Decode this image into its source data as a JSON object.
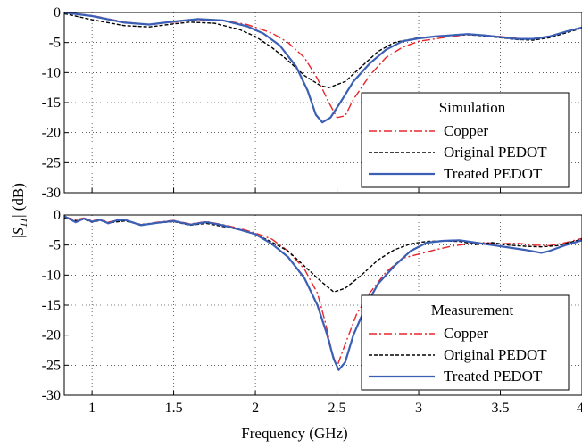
{
  "chart_data": [
    {
      "type": "line",
      "title": "Simulation",
      "xlim": [
        0.83,
        4.0
      ],
      "ylim": [
        -30,
        0
      ],
      "xticks": [
        1,
        1.5,
        2,
        2.5,
        3,
        3.5,
        4
      ],
      "yticks": [
        0,
        -5,
        -10,
        -15,
        -20,
        -25,
        -30
      ],
      "xtick_labels": [
        "1",
        "1.5",
        "2",
        "2.5",
        "3",
        "3.5",
        "4"
      ],
      "ytick_labels": [
        "0",
        "-5",
        "-10",
        "-15",
        "-20",
        "-25",
        "-30"
      ],
      "grid": true,
      "legend_position": "lower-right",
      "series": [
        {
          "name": "Copper",
          "color": "#e8252b",
          "dash": "dash-dot",
          "points": [
            [
              0.83,
              0
            ],
            [
              1.0,
              -0.5
            ],
            [
              1.2,
              -1.6
            ],
            [
              1.35,
              -2.0
            ],
            [
              1.5,
              -1.6
            ],
            [
              1.65,
              -1.2
            ],
            [
              1.8,
              -1.3
            ],
            [
              1.95,
              -2.0
            ],
            [
              2.1,
              -3.4
            ],
            [
              2.2,
              -5.0
            ],
            [
              2.3,
              -7.5
            ],
            [
              2.38,
              -11.0
            ],
            [
              2.45,
              -15.0
            ],
            [
              2.5,
              -17.5
            ],
            [
              2.55,
              -17.2
            ],
            [
              2.6,
              -14.5
            ],
            [
              2.7,
              -10.5
            ],
            [
              2.8,
              -7.5
            ],
            [
              2.9,
              -5.8
            ],
            [
              3.0,
              -4.8
            ],
            [
              3.1,
              -4.4
            ],
            [
              3.2,
              -4.0
            ],
            [
              3.3,
              -3.7
            ],
            [
              3.4,
              -3.8
            ],
            [
              3.5,
              -4.0
            ],
            [
              3.6,
              -4.3
            ],
            [
              3.7,
              -4.4
            ],
            [
              3.8,
              -4.0
            ],
            [
              3.9,
              -3.2
            ],
            [
              4.0,
              -2.5
            ]
          ]
        },
        {
          "name": "Original PEDOT",
          "color": "#000000",
          "dash": "dashed",
          "points": [
            [
              0.83,
              -0.2
            ],
            [
              1.0,
              -1.2
            ],
            [
              1.2,
              -2.2
            ],
            [
              1.35,
              -2.4
            ],
            [
              1.5,
              -1.9
            ],
            [
              1.6,
              -1.6
            ],
            [
              1.75,
              -1.8
            ],
            [
              1.9,
              -2.8
            ],
            [
              2.0,
              -4.0
            ],
            [
              2.1,
              -5.8
            ],
            [
              2.2,
              -8.0
            ],
            [
              2.3,
              -10.5
            ],
            [
              2.4,
              -12.2
            ],
            [
              2.45,
              -12.5
            ],
            [
              2.55,
              -11.5
            ],
            [
              2.65,
              -9.0
            ],
            [
              2.75,
              -6.5
            ],
            [
              2.85,
              -5.0
            ],
            [
              3.0,
              -4.2
            ],
            [
              3.2,
              -3.8
            ],
            [
              3.3,
              -3.7
            ],
            [
              3.4,
              -3.9
            ],
            [
              3.5,
              -4.2
            ],
            [
              3.6,
              -4.5
            ],
            [
              3.7,
              -4.6
            ],
            [
              3.8,
              -4.2
            ],
            [
              3.9,
              -3.4
            ],
            [
              4.0,
              -2.6
            ]
          ]
        },
        {
          "name": "Treated PEDOT",
          "color": "#3b5fb5",
          "dash": "solid",
          "points": [
            [
              0.83,
              0
            ],
            [
              1.0,
              -0.6
            ],
            [
              1.2,
              -1.7
            ],
            [
              1.35,
              -2.0
            ],
            [
              1.5,
              -1.5
            ],
            [
              1.65,
              -1.1
            ],
            [
              1.8,
              -1.3
            ],
            [
              1.95,
              -2.3
            ],
            [
              2.05,
              -3.5
            ],
            [
              2.15,
              -5.5
            ],
            [
              2.25,
              -9.0
            ],
            [
              2.32,
              -13.0
            ],
            [
              2.37,
              -17.0
            ],
            [
              2.41,
              -18.3
            ],
            [
              2.46,
              -17.5
            ],
            [
              2.52,
              -15.0
            ],
            [
              2.6,
              -11.5
            ],
            [
              2.7,
              -8.5
            ],
            [
              2.8,
              -6.2
            ],
            [
              2.9,
              -4.8
            ],
            [
              3.0,
              -4.3
            ],
            [
              3.1,
              -4.0
            ],
            [
              3.3,
              -3.6
            ],
            [
              3.4,
              -3.8
            ],
            [
              3.5,
              -4.1
            ],
            [
              3.6,
              -4.4
            ],
            [
              3.7,
              -4.4
            ],
            [
              3.8,
              -4.0
            ],
            [
              3.9,
              -3.2
            ],
            [
              4.0,
              -2.5
            ]
          ]
        }
      ]
    },
    {
      "type": "line",
      "title": "Measurement",
      "xlim": [
        0.83,
        4.0
      ],
      "ylim": [
        -30,
        0
      ],
      "xticks": [
        1,
        1.5,
        2,
        2.5,
        3,
        3.5,
        4
      ],
      "yticks": [
        0,
        -5,
        -10,
        -15,
        -20,
        -25,
        -30
      ],
      "xtick_labels": [
        "1",
        "1.5",
        "2",
        "2.5",
        "3",
        "3.5",
        "4"
      ],
      "ytick_labels": [
        "0",
        "-5",
        "-10",
        "-15",
        "-20",
        "-25",
        "-30"
      ],
      "grid": true,
      "legend_position": "lower-right",
      "series": [
        {
          "name": "Copper",
          "color": "#e8252b",
          "dash": "dash-dot",
          "points": [
            [
              0.83,
              -0.3
            ],
            [
              0.9,
              -0.8
            ],
            [
              0.95,
              -0.5
            ],
            [
              1.0,
              -1.0
            ],
            [
              1.05,
              -0.7
            ],
            [
              1.1,
              -1.2
            ],
            [
              1.15,
              -0.9
            ],
            [
              1.2,
              -0.8
            ],
            [
              1.3,
              -1.6
            ],
            [
              1.4,
              -1.2
            ],
            [
              1.5,
              -0.9
            ],
            [
              1.6,
              -1.5
            ],
            [
              1.7,
              -1.1
            ],
            [
              1.8,
              -1.6
            ],
            [
              1.9,
              -2.2
            ],
            [
              2.0,
              -3.0
            ],
            [
              2.1,
              -4.0
            ],
            [
              2.2,
              -6.0
            ],
            [
              2.3,
              -9.0
            ],
            [
              2.38,
              -13.0
            ],
            [
              2.43,
              -18.0
            ],
            [
              2.47,
              -23.0
            ],
            [
              2.5,
              -25.2
            ],
            [
              2.55,
              -21.5
            ],
            [
              2.62,
              -16.5
            ],
            [
              2.7,
              -13.0
            ],
            [
              2.8,
              -9.5
            ],
            [
              2.9,
              -7.2
            ],
            [
              3.0,
              -6.5
            ],
            [
              3.1,
              -5.8
            ],
            [
              3.2,
              -5.2
            ],
            [
              3.3,
              -4.8
            ],
            [
              3.4,
              -4.6
            ],
            [
              3.5,
              -4.8
            ],
            [
              3.6,
              -4.7
            ],
            [
              3.7,
              -5.0
            ],
            [
              3.8,
              -5.1
            ],
            [
              3.9,
              -4.6
            ],
            [
              4.0,
              -3.9
            ]
          ]
        },
        {
          "name": "Original PEDOT",
          "color": "#000000",
          "dash": "dashed",
          "points": [
            [
              0.83,
              -0.5
            ],
            [
              0.9,
              -1.0
            ],
            [
              0.95,
              -0.7
            ],
            [
              1.0,
              -1.2
            ],
            [
              1.05,
              -0.9
            ],
            [
              1.1,
              -1.3
            ],
            [
              1.2,
              -1.0
            ],
            [
              1.3,
              -1.6
            ],
            [
              1.4,
              -1.3
            ],
            [
              1.5,
              -1.1
            ],
            [
              1.6,
              -1.7
            ],
            [
              1.7,
              -1.4
            ],
            [
              1.8,
              -1.9
            ],
            [
              1.9,
              -2.4
            ],
            [
              2.0,
              -3.2
            ],
            [
              2.1,
              -4.5
            ],
            [
              2.2,
              -6.0
            ],
            [
              2.3,
              -8.5
            ],
            [
              2.4,
              -11.0
            ],
            [
              2.48,
              -12.8
            ],
            [
              2.55,
              -12.2
            ],
            [
              2.65,
              -10.0
            ],
            [
              2.75,
              -7.5
            ],
            [
              2.85,
              -5.8
            ],
            [
              2.95,
              -4.8
            ],
            [
              3.05,
              -4.4
            ],
            [
              3.15,
              -4.3
            ],
            [
              3.25,
              -4.4
            ],
            [
              3.35,
              -4.9
            ],
            [
              3.45,
              -4.6
            ],
            [
              3.55,
              -5.0
            ],
            [
              3.65,
              -5.2
            ],
            [
              3.75,
              -5.3
            ],
            [
              3.85,
              -5.1
            ],
            [
              3.95,
              -4.4
            ],
            [
              4.0,
              -4.0
            ]
          ]
        },
        {
          "name": "Treated PEDOT",
          "color": "#3b5fb5",
          "dash": "solid",
          "points": [
            [
              0.83,
              -0.2
            ],
            [
              0.9,
              -1.2
            ],
            [
              0.95,
              -0.6
            ],
            [
              1.0,
              -1.1
            ],
            [
              1.05,
              -0.8
            ],
            [
              1.1,
              -1.4
            ],
            [
              1.15,
              -0.9
            ],
            [
              1.2,
              -0.8
            ],
            [
              1.3,
              -1.7
            ],
            [
              1.4,
              -1.3
            ],
            [
              1.5,
              -1.0
            ],
            [
              1.6,
              -1.6
            ],
            [
              1.7,
              -1.2
            ],
            [
              1.8,
              -1.7
            ],
            [
              1.9,
              -2.4
            ],
            [
              2.0,
              -3.2
            ],
            [
              2.1,
              -4.8
            ],
            [
              2.2,
              -7.0
            ],
            [
              2.3,
              -10.5
            ],
            [
              2.38,
              -15.0
            ],
            [
              2.44,
              -20.0
            ],
            [
              2.48,
              -24.0
            ],
            [
              2.51,
              -25.8
            ],
            [
              2.55,
              -24.5
            ],
            [
              2.6,
              -20.0
            ],
            [
              2.68,
              -15.0
            ],
            [
              2.75,
              -11.5
            ],
            [
              2.85,
              -8.5
            ],
            [
              2.95,
              -6.0
            ],
            [
              3.05,
              -4.6
            ],
            [
              3.15,
              -4.3
            ],
            [
              3.25,
              -4.2
            ],
            [
              3.35,
              -4.6
            ],
            [
              3.45,
              -5.0
            ],
            [
              3.55,
              -5.4
            ],
            [
              3.65,
              -5.8
            ],
            [
              3.75,
              -6.3
            ],
            [
              3.8,
              -6.0
            ],
            [
              3.9,
              -5.0
            ],
            [
              4.0,
              -4.2
            ]
          ]
        }
      ]
    }
  ],
  "axes": {
    "xlabel": "Frequency (GHz)",
    "ylabel_prefix": "|",
    "ylabel_symbol": "S",
    "ylabel_subscript": "11",
    "ylabel_suffix": "| (dB)"
  }
}
